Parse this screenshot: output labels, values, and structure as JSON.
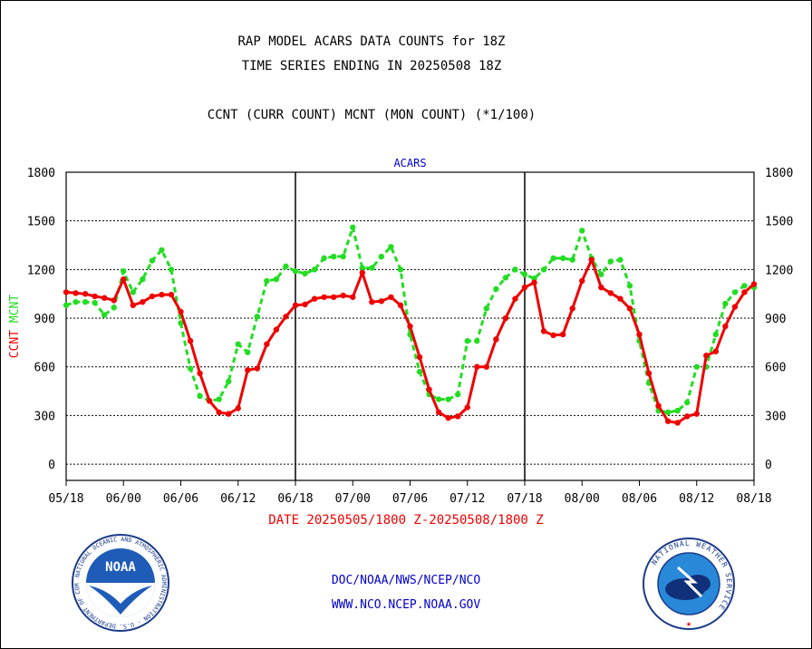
{
  "title1": "RAP MODEL ACARS DATA COUNTS for 18Z",
  "title2": "TIME SERIES ENDING IN 20250508 18Z",
  "subtitle": "CCNT (CURR COUNT) MCNT (MON COUNT) (*1/100)",
  "date_range": "DATE 20250505/1800 Z-20250508/1800 Z",
  "footer_org": "DOC/NOAA/NWS/NCEP/NCO",
  "footer_url": "WWW.NCO.NCEP.NOAA.GOV",
  "noaa_logo": {
    "label": "NOAA",
    "ring_text": "NATIONAL OCEANIC AND ATMOSPHERIC ADMINISTRATION · U.S. DEPARTMENT OF COMMERCE"
  },
  "nws_logo": {
    "ring_text": "NATIONAL WEATHER SERVICE"
  },
  "colors": {
    "ccnt": "#ee0000",
    "mcnt": "#22dd22",
    "text_blue": "#0000cc",
    "axis": "#000000"
  },
  "chart_data": {
    "type": "line",
    "panel_title": "ACARS",
    "ylabel_left": [
      "CCNT",
      "MCNT"
    ],
    "ylim": [
      -100,
      1800
    ],
    "yticks": [
      0,
      300,
      600,
      900,
      1200,
      1500,
      1800
    ],
    "xlim": [
      0,
      72
    ],
    "xticks": [
      0,
      6,
      12,
      18,
      24,
      30,
      36,
      42,
      48,
      54,
      60,
      66,
      72
    ],
    "xticklabels": [
      "05/18",
      "06/00",
      "06/06",
      "06/12",
      "06/18",
      "07/00",
      "07/06",
      "07/12",
      "07/18",
      "08/00",
      "08/06",
      "08/12",
      "08/18"
    ],
    "day_dividers": [
      24,
      48
    ],
    "grid": true,
    "x_unit": "hours since 05/18 18Z",
    "series": [
      {
        "name": "CCNT",
        "values": [
          1060,
          1055,
          1050,
          1035,
          1025,
          1010,
          1140,
          980,
          1000,
          1035,
          1045,
          1045,
          940,
          760,
          560,
          390,
          320,
          310,
          345,
          580,
          590,
          740,
          830,
          910,
          980,
          985,
          1020,
          1030,
          1030,
          1040,
          1030,
          1180,
          1000,
          1005,
          1030,
          980,
          850,
          660,
          460,
          320,
          285,
          295,
          350,
          600,
          600,
          770,
          900,
          1020,
          1090,
          1120,
          820,
          795,
          800,
          960,
          1130,
          1260,
          1090,
          1055,
          1020,
          960,
          800,
          560,
          360,
          265,
          255,
          295,
          310,
          670,
          695,
          850,
          970,
          1060,
          1110
        ]
      },
      {
        "name": "MCNT",
        "values": [
          980,
          1000,
          1000,
          995,
          920,
          965,
          1190,
          1060,
          1140,
          1255,
          1320,
          1200,
          870,
          590,
          420,
          390,
          400,
          510,
          740,
          690,
          910,
          1130,
          1140,
          1220,
          1190,
          1175,
          1200,
          1270,
          1280,
          1280,
          1460,
          1210,
          1210,
          1280,
          1340,
          1200,
          800,
          570,
          430,
          400,
          400,
          430,
          760,
          760,
          960,
          1080,
          1150,
          1200,
          1170,
          1145,
          1200,
          1270,
          1270,
          1260,
          1440,
          1270,
          1170,
          1250,
          1260,
          1100,
          760,
          500,
          330,
          320,
          330,
          380,
          600,
          600,
          800,
          990,
          1060,
          1100,
          1090
        ]
      }
    ]
  }
}
